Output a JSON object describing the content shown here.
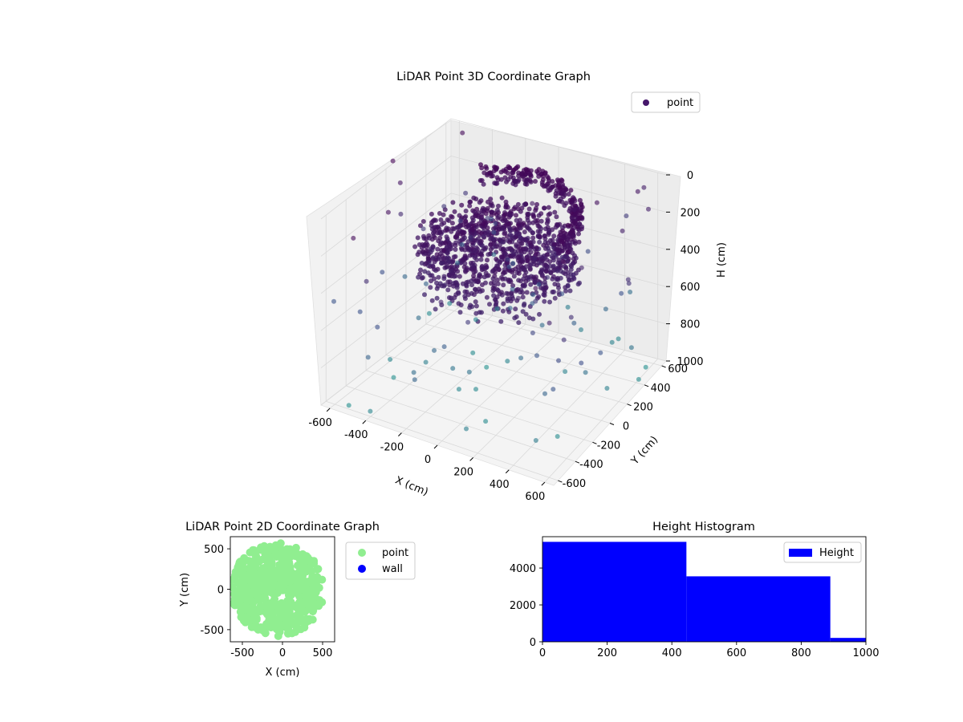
{
  "chart_data": [
    {
      "type": "scatter",
      "title": "LiDAR Point 3D Coordinate Graph",
      "xlabel": "X (cm)",
      "ylabel": "Y (cm)",
      "zlabel": "H (cm)",
      "xlim": [
        -650,
        650
      ],
      "ylim": [
        -650,
        650
      ],
      "zlim": [
        1000,
        0
      ],
      "x_ticks": [
        -600,
        -400,
        -200,
        0,
        200,
        400,
        600
      ],
      "y_ticks": [
        -600,
        -400,
        -200,
        0,
        200,
        400,
        600
      ],
      "z_ticks": [
        0,
        200,
        400,
        600,
        800,
        1000
      ],
      "legend": {
        "position": "top-right",
        "entries": [
          {
            "label": "point",
            "color": "#46176b"
          }
        ]
      },
      "grid": true,
      "color_by_height": true
    },
    {
      "type": "scatter",
      "title": "LiDAR Point 2D Coordinate Graph",
      "xlabel": "X (cm)",
      "ylabel": "Y (cm)",
      "xlim": [
        -650,
        650
      ],
      "ylim": [
        -650,
        650
      ],
      "x_ticks": [
        -500,
        0,
        500
      ],
      "y_ticks": [
        -500,
        0,
        500
      ],
      "legend": {
        "position": "right-outside",
        "entries": [
          {
            "label": "point",
            "color": "#90ee90"
          },
          {
            "label": "wall",
            "color": "#0000ff"
          }
        ]
      },
      "series": [
        {
          "name": "point",
          "color": "#90ee90"
        },
        {
          "name": "wall",
          "color": "#0000ff",
          "points": []
        }
      ]
    },
    {
      "type": "bar",
      "title": "Height Histogram",
      "xlim": [
        0,
        1000
      ],
      "ylim": [
        0,
        5700
      ],
      "x_ticks": [
        0,
        200,
        400,
        600,
        800,
        1000
      ],
      "y_ticks": [
        0,
        2000,
        4000
      ],
      "legend": {
        "position": "top-right",
        "entries": [
          {
            "label": "Height",
            "color": "#0000ff"
          }
        ]
      },
      "bins": [
        {
          "start": 0,
          "end": 445,
          "count": 5420
        },
        {
          "start": 445,
          "end": 890,
          "count": 3550
        },
        {
          "start": 890,
          "end": 1000,
          "count": 210
        }
      ],
      "bar_color": "#0000ff"
    }
  ]
}
